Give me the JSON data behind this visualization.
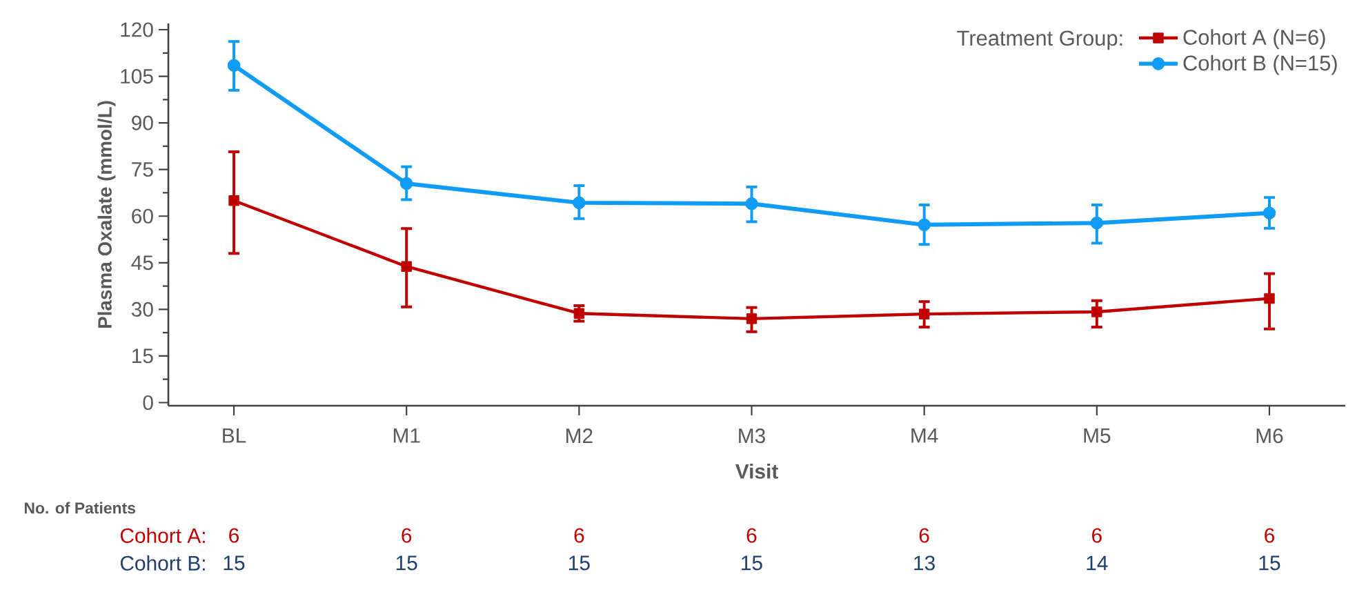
{
  "chart_data": {
    "type": "line",
    "xlabel": "Visit",
    "ylabel": "Plasma Oxalate (mmol/L)",
    "legend_title": "Treatment Group:",
    "legend": "top right",
    "categories": [
      "BL",
      "M1",
      "M2",
      "M3",
      "M4",
      "M5",
      "M6"
    ],
    "ylim": [
      -1,
      122
    ],
    "yticks": [
      0,
      15,
      30,
      45,
      60,
      75,
      90,
      105,
      120
    ],
    "series": [
      {
        "name": "Cohort A (N=6)",
        "color": "#c00000",
        "marker": "square",
        "values": [
          65.0,
          43.8,
          28.7,
          27.0,
          28.5,
          29.2,
          33.5
        ],
        "errors": [
          [
            48.0,
            80.7
          ],
          [
            30.8,
            56.0
          ],
          [
            26.2,
            31.2
          ],
          [
            22.8,
            30.6
          ],
          [
            24.3,
            32.5
          ],
          [
            24.3,
            32.8
          ],
          [
            23.7,
            41.5
          ]
        ]
      },
      {
        "name": "Cohort B (N=15)",
        "color": "#109cf5",
        "marker": "circle",
        "values": [
          108.5,
          70.5,
          64.3,
          64.0,
          57.2,
          57.8,
          61.0
        ],
        "errors": [
          [
            100.5,
            116.2
          ],
          [
            65.3,
            75.9
          ],
          [
            59.2,
            69.8
          ],
          [
            58.2,
            69.4
          ],
          [
            50.9,
            63.6
          ],
          [
            51.3,
            63.6
          ],
          [
            56.1,
            66.0
          ]
        ]
      }
    ],
    "annotations": [
      "No. of Patients",
      "Cohort A:",
      "6",
      "6",
      "6",
      "6",
      "6",
      "6",
      "6",
      "Cohort B:",
      "15",
      "15",
      "15",
      "15",
      "13",
      "14",
      "15"
    ]
  }
}
